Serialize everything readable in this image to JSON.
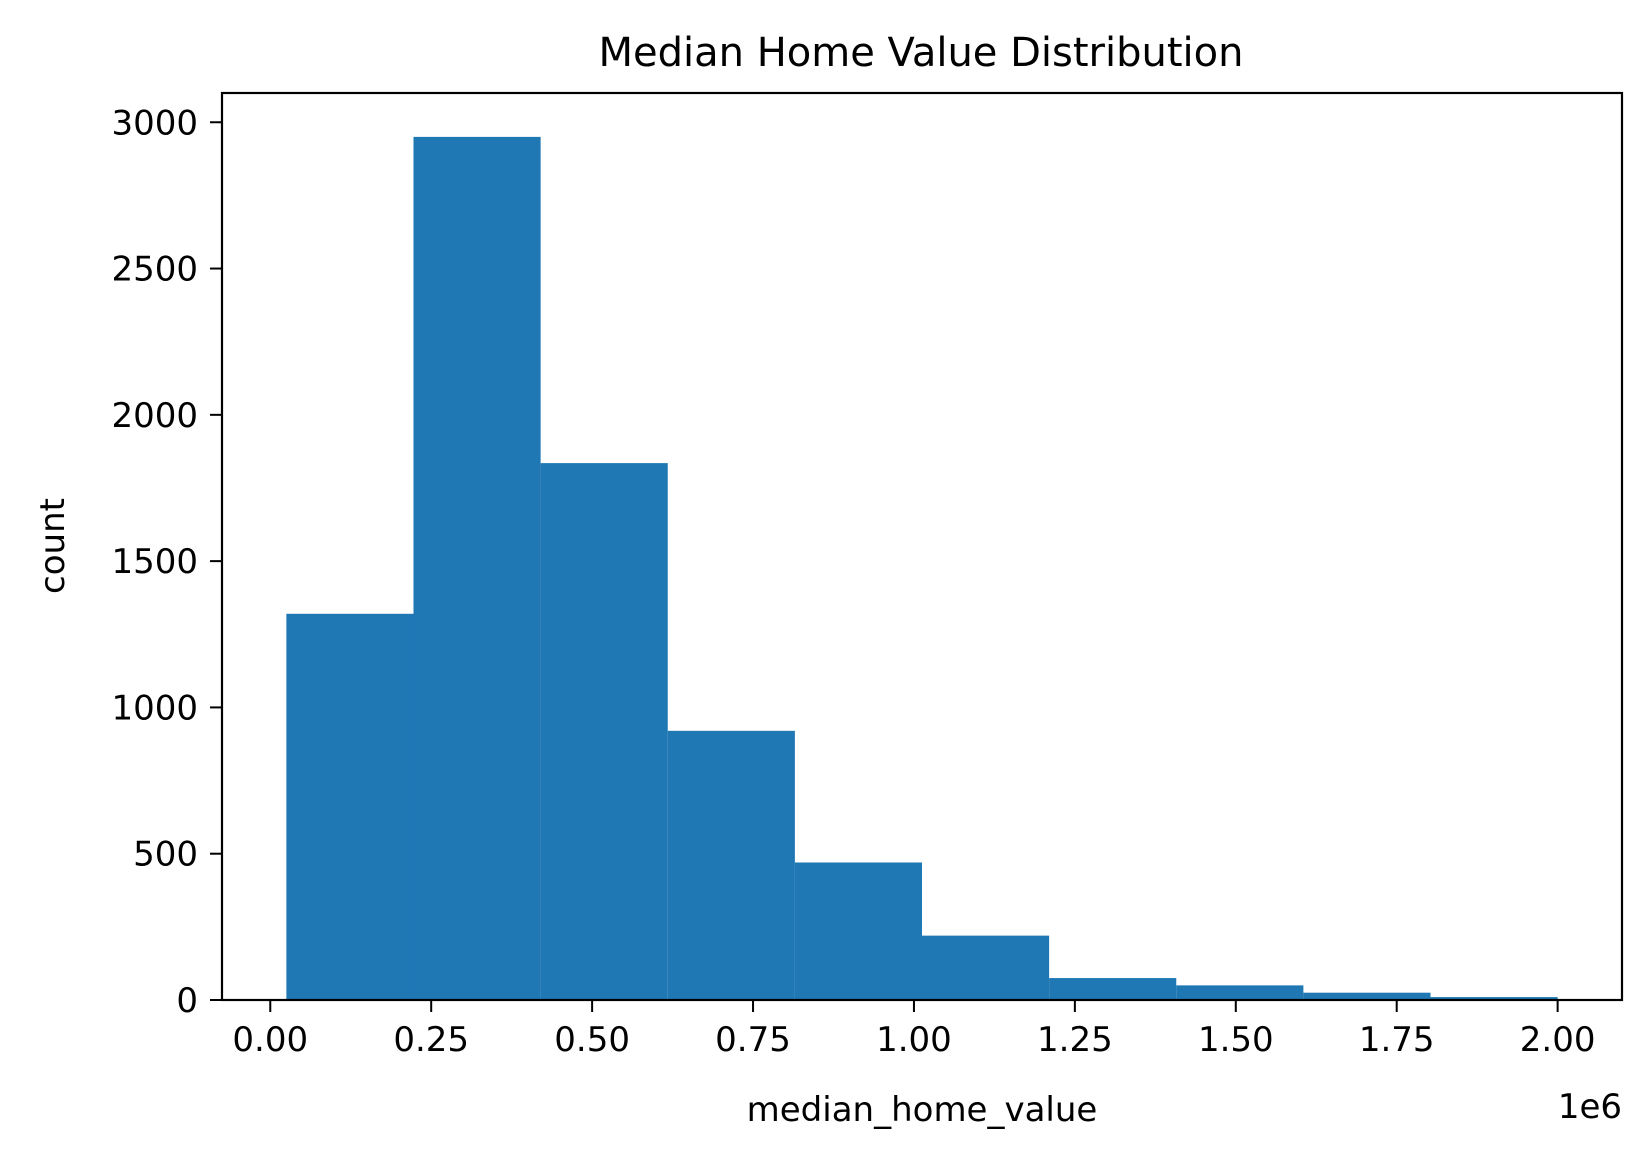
{
  "chart_data": {
    "type": "bar",
    "subtype": "histogram",
    "title": "Median Home Value Distribution",
    "xlabel": "median_home_value",
    "ylabel": "count",
    "x_offset_label": "1e6",
    "xlim": [
      -0.075,
      2.1
    ],
    "ylim": [
      0,
      3100
    ],
    "x_ticks": [
      0.0,
      0.25,
      0.5,
      0.75,
      1.0,
      1.25,
      1.5,
      1.75,
      2.0
    ],
    "x_tick_labels": [
      "0.00",
      "0.25",
      "0.50",
      "0.75",
      "1.00",
      "1.25",
      "1.50",
      "1.75",
      "2.00"
    ],
    "y_ticks": [
      0,
      500,
      1000,
      1500,
      2000,
      2500,
      3000
    ],
    "y_tick_labels": [
      "0",
      "500",
      "1000",
      "1500",
      "2000",
      "2500",
      "3000"
    ],
    "bin_edges": [
      0.025,
      0.2225,
      0.42,
      0.6175,
      0.815,
      1.0125,
      1.21,
      1.4075,
      1.605,
      1.8025,
      2.0
    ],
    "counts": [
      1320,
      2950,
      1835,
      920,
      470,
      220,
      75,
      50,
      25,
      10
    ],
    "bar_color": "#1f77b4",
    "grid": false,
    "legend": "none"
  }
}
